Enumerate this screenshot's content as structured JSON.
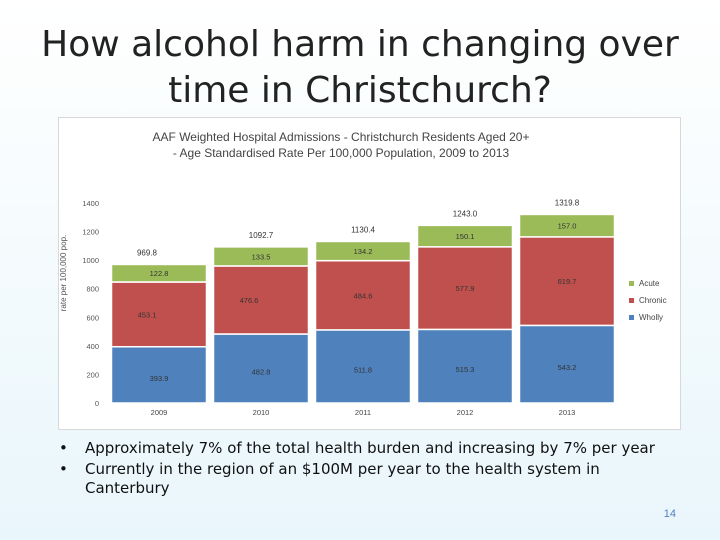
{
  "slide": {
    "title": "How alcohol harm in changing over time in Christchurch?",
    "bullets": [
      "Approximately 7% of the total health burden and increasing by 7% per year",
      "Currently in the region of an $100M per year to the health system in Canterbury"
    ],
    "page_number": "14"
  },
  "chart_data": {
    "type": "bar",
    "stacked": true,
    "title": "AAF Weighted Hospital Admissions - Christchurch Residents Aged 20+ - Age Standardised Rate Per 100,000 Population, 2009 to 2013",
    "title_lines": [
      "AAF Weighted Hospital Admissions - Christchurch Residents Aged 20+",
      "- Age Standardised Rate Per 100,000 Population, 2009 to 2013"
    ],
    "ylabel": "rate per 100,000 pop.",
    "xlabel": "",
    "ylim": [
      0,
      1400
    ],
    "yticks": [
      0,
      200,
      400,
      600,
      800,
      1000,
      1200,
      1400
    ],
    "categories": [
      "2009",
      "2010",
      "2011",
      "2012",
      "2013"
    ],
    "series": [
      {
        "name": "Wholly",
        "color": "#4f81bd",
        "values": [
          393.9,
          482.8,
          511.8,
          515.3,
          543.2
        ],
        "labels": [
          "393.9",
          "482.8",
          "511.8",
          "515.3",
          "543.2"
        ]
      },
      {
        "name": "Chronic",
        "color": "#c0504d",
        "values": [
          453.1,
          476.6,
          484.6,
          577.9,
          619.7
        ],
        "labels": [
          "453.1",
          "476.6",
          "484.6",
          "577.9",
          "619.7"
        ]
      },
      {
        "name": "Acute",
        "color": "#9bbb59",
        "values": [
          122.8,
          133.5,
          134.2,
          150.1,
          157.0
        ],
        "labels": [
          "122.8",
          "133.5",
          "134.2",
          "150.1",
          "157.0"
        ]
      }
    ],
    "totals": [
      969.8,
      1092.7,
      1130.4,
      1243.0,
      1319.8
    ],
    "total_labels": [
      "969.8",
      "1092.7",
      "1130.4",
      "1243.0",
      "1319.8"
    ],
    "legend_order": [
      "Acute",
      "Chronic",
      "Wholly"
    ],
    "legend_position": "right",
    "grid": false
  }
}
